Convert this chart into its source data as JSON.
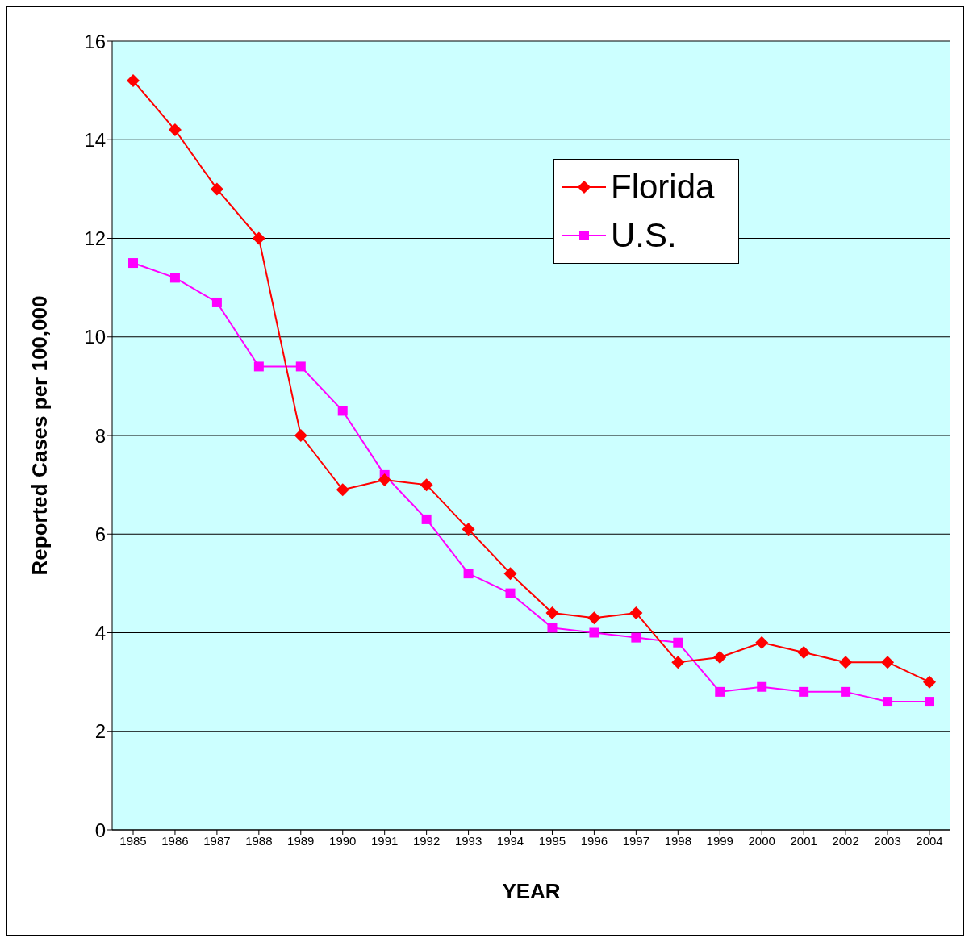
{
  "chart_data": {
    "type": "line",
    "xlabel": "YEAR",
    "ylabel": "Reported Cases per 100,000",
    "categories": [
      "1985",
      "1986",
      "1987",
      "1988",
      "1989",
      "1990",
      "1991",
      "1992",
      "1993",
      "1994",
      "1995",
      "1996",
      "1997",
      "1998",
      "1999",
      "2000",
      "2001",
      "2002",
      "2003",
      "2004"
    ],
    "series": [
      {
        "name": "Florida",
        "color": "#ff0000",
        "marker": "diamond",
        "values": [
          15.2,
          14.2,
          13.0,
          12.0,
          8.0,
          6.9,
          7.1,
          7.0,
          6.1,
          5.2,
          4.4,
          4.3,
          4.4,
          3.4,
          3.5,
          3.8,
          3.6,
          3.4,
          3.4,
          3.0
        ]
      },
      {
        "name": "U.S.",
        "color": "#ff00ff",
        "marker": "square",
        "values": [
          11.5,
          11.2,
          10.7,
          9.4,
          9.4,
          8.5,
          7.2,
          6.3,
          5.2,
          4.8,
          4.1,
          4.0,
          3.9,
          3.8,
          2.8,
          2.9,
          2.8,
          2.8,
          2.6,
          2.6
        ]
      }
    ],
    "ylim": [
      0,
      16
    ],
    "yticks": [
      0,
      2,
      4,
      6,
      8,
      10,
      12,
      14,
      16
    ],
    "grid": "y",
    "legend": "top right",
    "line_style": "solid"
  }
}
